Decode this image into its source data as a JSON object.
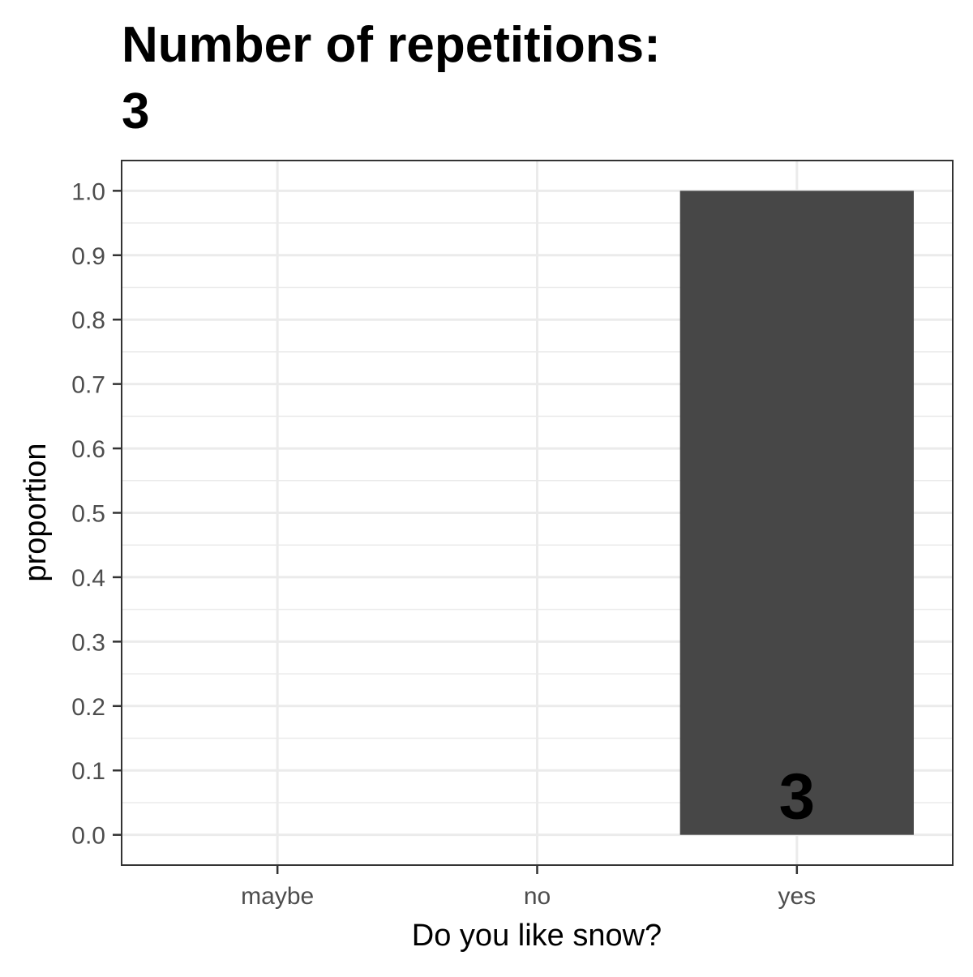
{
  "chart_data": {
    "type": "bar",
    "title_lines": [
      "Number of repetitions:",
      "3"
    ],
    "xlabel": "Do you like snow?",
    "ylabel": "proportion",
    "categories": [
      "maybe",
      "no",
      "yes"
    ],
    "values": [
      0,
      0,
      1.0
    ],
    "data_labels": [
      "",
      "",
      "3"
    ],
    "ylim": [
      -0.047,
      1.047
    ],
    "yticks": [
      0.0,
      0.1,
      0.2,
      0.3,
      0.4,
      0.5,
      0.6,
      0.7,
      0.8,
      0.9,
      1.0
    ],
    "ytick_labels": [
      "0.0",
      "0.1",
      "0.2",
      "0.3",
      "0.4",
      "0.5",
      "0.6",
      "0.7",
      "0.8",
      "0.9",
      "1.0"
    ],
    "grid": true,
    "legend": "none",
    "colors": {
      "bar": "#474747",
      "panel_border": "#333333",
      "grid": "#ebebeb",
      "background": "#ffffff"
    }
  }
}
